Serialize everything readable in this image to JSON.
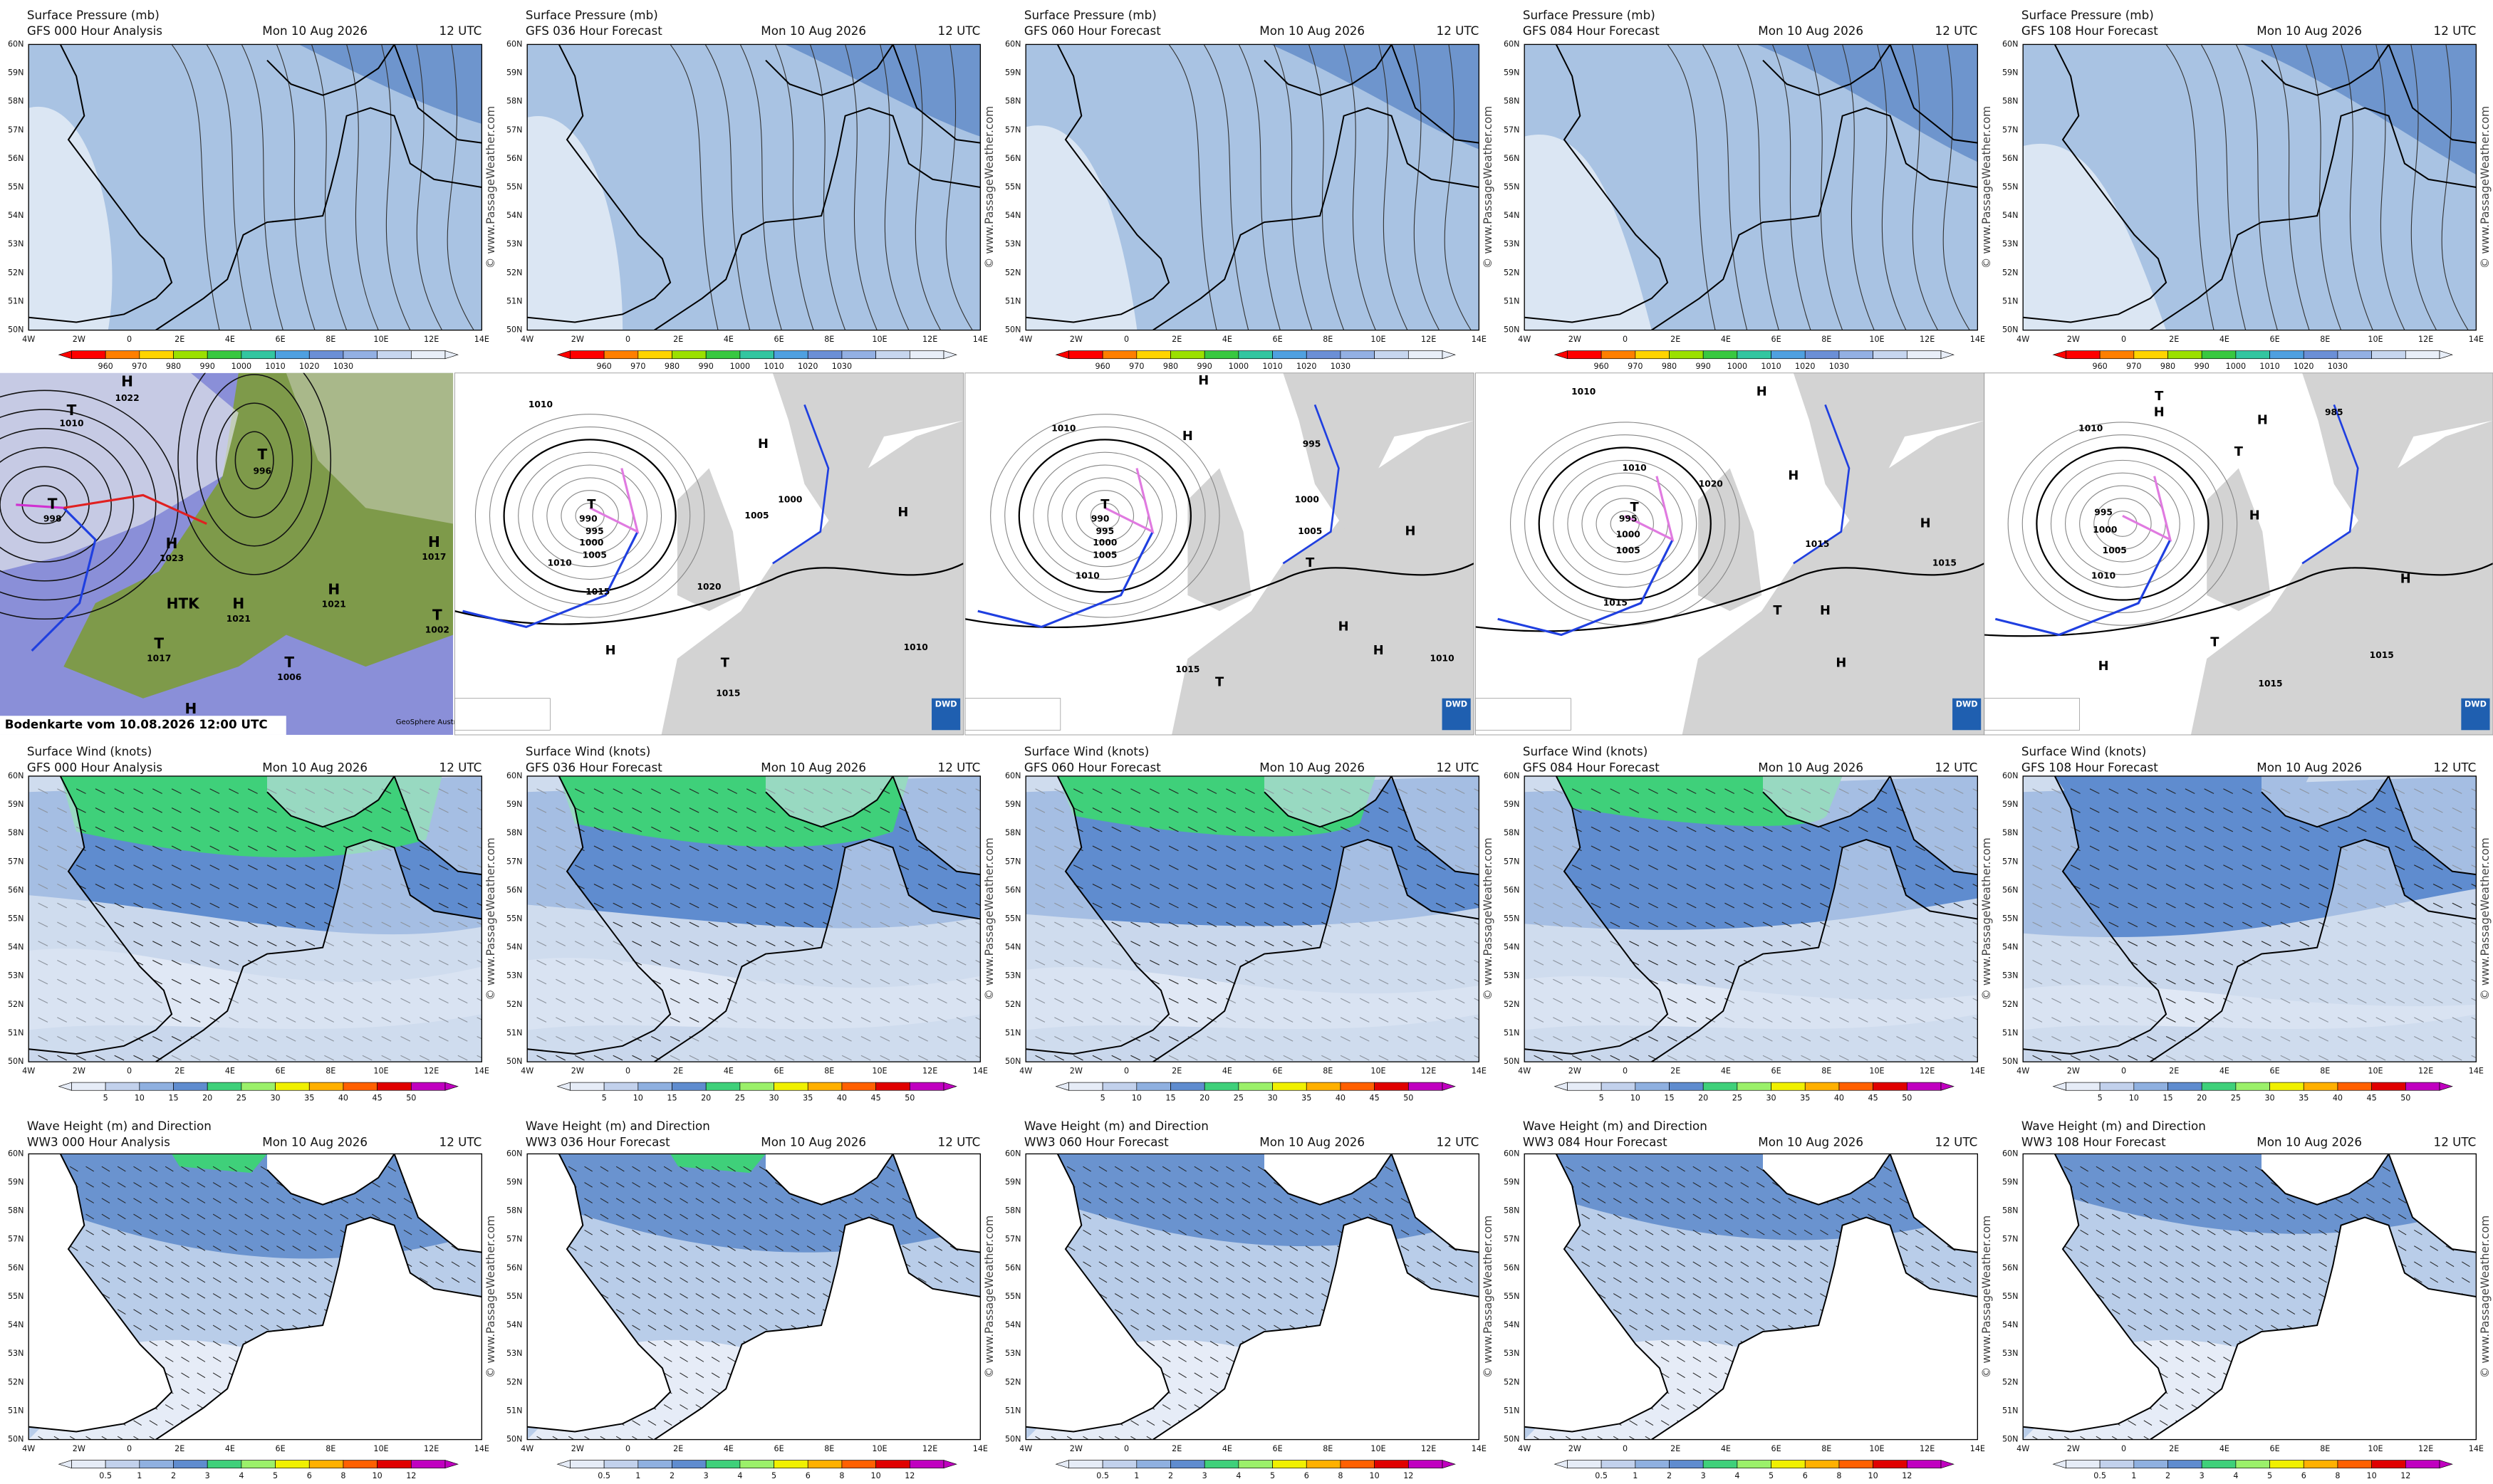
{
  "forecast_rows": [
    {
      "panels": [
        {
          "title": "Surface Pressure (mb)",
          "run": "GFS 000 Hour Analysis",
          "date": "Mon 10 Aug 2026",
          "time": "12 UTC"
        },
        {
          "title": "Surface Pressure (mb)",
          "run": "GFS 036 Hour Forecast",
          "date": "Mon 10 Aug 2026",
          "time": "12 UTC"
        },
        {
          "title": "Surface Pressure (mb)",
          "run": "GFS 060 Hour Forecast",
          "date": "Mon 10 Aug 2026",
          "time": "12 UTC"
        },
        {
          "title": "Surface Pressure (mb)",
          "run": "GFS 084 Hour Forecast",
          "date": "Mon 10 Aug 2026",
          "time": "12 UTC"
        },
        {
          "title": "Surface Pressure (mb)",
          "run": "GFS 108 Hour Forecast",
          "date": "Mon 10 Aug 2026",
          "time": "12 UTC"
        }
      ],
      "scale": [
        "960",
        "970",
        "980",
        "990",
        "1000",
        "1010",
        "1020",
        "1030"
      ]
    },
    {
      "panels": [
        {
          "title": "Surface Wind (knots)",
          "run": "GFS 000 Hour Analysis",
          "date": "Mon 10 Aug 2026",
          "time": "12 UTC"
        },
        {
          "title": "Surface Wind (knots)",
          "run": "GFS 036 Hour Forecast",
          "date": "Mon 10 Aug 2026",
          "time": "12 UTC"
        },
        {
          "title": "Surface Wind (knots)",
          "run": "GFS 060 Hour Forecast",
          "date": "Mon 10 Aug 2026",
          "time": "12 UTC"
        },
        {
          "title": "Surface Wind (knots)",
          "run": "GFS 084 Hour Forecast",
          "date": "Mon 10 Aug 2026",
          "time": "12 UTC"
        },
        {
          "title": "Surface Wind (knots)",
          "run": "GFS 108 Hour Forecast",
          "date": "Mon 10 Aug 2026",
          "time": "12 UTC"
        }
      ],
      "scale": [
        "5",
        "10",
        "15",
        "20",
        "25",
        "30",
        "35",
        "40",
        "45",
        "50"
      ]
    },
    {
      "panels": [
        {
          "title": "Wave Height (m) and Direction",
          "run": "WW3 000 Hour Analysis",
          "date": "Mon 10 Aug 2026",
          "time": "12 UTC"
        },
        {
          "title": "Wave Height (m) and Direction",
          "run": "WW3 036 Hour Forecast",
          "date": "Mon 10 Aug 2026",
          "time": "12 UTC"
        },
        {
          "title": "Wave Height (m) and Direction",
          "run": "WW3 060 Hour Forecast",
          "date": "Mon 10 Aug 2026",
          "time": "12 UTC"
        },
        {
          "title": "Wave Height (m) and Direction",
          "run": "WW3 084 Hour Forecast",
          "date": "Mon 10 Aug 2026",
          "time": "12 UTC"
        },
        {
          "title": "Wave Height (m) and Direction",
          "run": "WW3 108 Hour Forecast",
          "date": "Mon 10 Aug 2026",
          "time": "12 UTC"
        }
      ],
      "scale": [
        "0.5",
        "1",
        "2",
        "3",
        "4",
        "5",
        "6",
        "8",
        "10",
        "12"
      ]
    }
  ],
  "latitudes": [
    "60N",
    "59N",
    "58N",
    "57N",
    "56N",
    "55N",
    "54N",
    "53N",
    "52N",
    "51N",
    "50N"
  ],
  "longitudes": [
    "4W",
    "2W",
    "0",
    "2E",
    "4E",
    "6E",
    "8E",
    "10E",
    "12E",
    "14E"
  ],
  "watermark": "© www.PassageWeather.com",
  "synoptic": {
    "caption": "Bodenkarte vom 10.08.2026 12:00 UTC",
    "credit": "GeoSphere Austria",
    "labels": [
      "T",
      "1010",
      "H",
      "1022",
      "T",
      "996",
      "T",
      "998",
      "H",
      "1023",
      "HTK",
      "H",
      "1021",
      "H",
      "1021",
      "T",
      "1017",
      "H",
      "1017",
      "T",
      "1006",
      "T",
      "1002",
      "H"
    ]
  },
  "dwd_maps": [
    {
      "logo": "DWD",
      "labels": [
        "1010",
        "T",
        "990",
        "995",
        "1000",
        "1005",
        "1010",
        "1015",
        "H",
        "1005",
        "1000",
        "H",
        "1020",
        "H",
        "T",
        "1015",
        "1010"
      ]
    },
    {
      "logo": "DWD",
      "labels": [
        "1010",
        "H",
        "H",
        "T",
        "990",
        "995",
        "1000",
        "1005",
        "1010",
        "995",
        "1000",
        "1005",
        "T",
        "H",
        "1015",
        "T",
        "H",
        "H",
        "1010"
      ]
    },
    {
      "logo": "DWD",
      "labels": [
        "1010",
        "H",
        "T",
        "1010",
        "995",
        "1000",
        "1005",
        "1015",
        "1020",
        "H",
        "H",
        "1015",
        "T",
        "H",
        "H",
        "1015"
      ]
    },
    {
      "logo": "DWD",
      "labels": [
        "1010",
        "H",
        "T",
        "H",
        "985",
        "T",
        "995",
        "1000",
        "1005",
        "1010",
        "H",
        "H",
        "1015",
        "T",
        "H",
        "1015"
      ]
    }
  ]
}
